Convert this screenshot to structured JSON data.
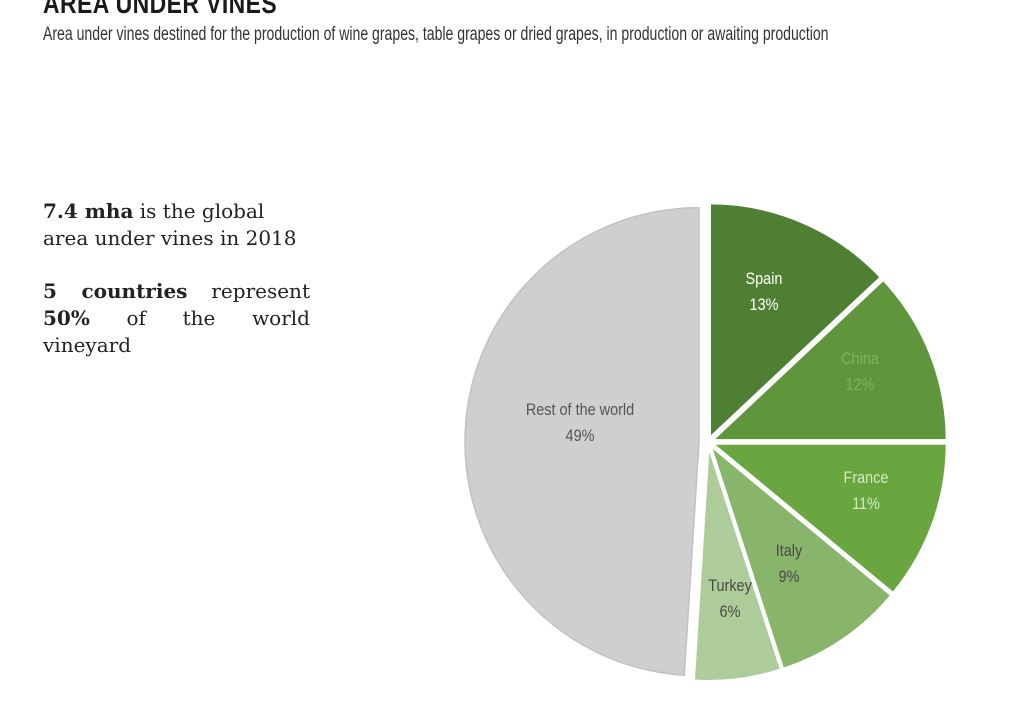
{
  "header": {
    "title": "AREA UNDER VINES",
    "subtitle": "Area under vines destined for the production of wine grapes, table grapes or dried grapes, in production or awaiting production"
  },
  "stats": {
    "line1_bold": "7.4 mha",
    "line1_rest": " is the global area under vines in 2018",
    "line2_bold_a": "5 countries",
    "line2_rest_a": " represent ",
    "line2_bold_b": "50%",
    "line2_rest_b": " of the world vineyard"
  },
  "chart_data": {
    "type": "pie",
    "title": "",
    "unit": "%",
    "slices": [
      {
        "label": "Spain",
        "value": 13,
        "value_label": "13%",
        "color": "#4e7f32",
        "text_color": "#ffffff"
      },
      {
        "label": "China",
        "value": 12,
        "value_label": "12%",
        "color": "#5f963c",
        "text_color": "#7fb25c"
      },
      {
        "label": "France",
        "value": 11,
        "value_label": "11%",
        "color": "#6aa640",
        "text_color": "#d4e9c2"
      },
      {
        "label": "Italy",
        "value": 9,
        "value_label": "9%",
        "color": "#88b56a",
        "text_color": "#4a4a4a"
      },
      {
        "label": "Turkey",
        "value": 6,
        "value_label": "6%",
        "color": "#adcc9a",
        "text_color": "#4a4a4a"
      },
      {
        "label": "Rest of the world",
        "value": 49,
        "value_label": "49%",
        "color": "#cfced0",
        "text_color": "#555555"
      }
    ],
    "legend": "none"
  }
}
